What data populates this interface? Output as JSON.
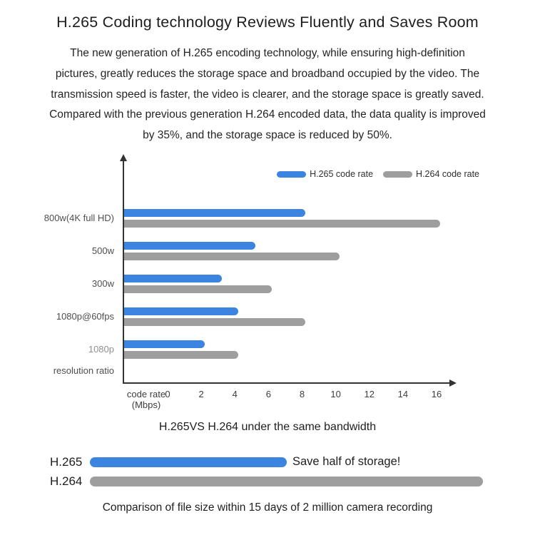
{
  "page": {
    "title": "H.265 Coding technology Reviews Fluently and Saves Room",
    "intro": "The new generation of H.265 encoding technology, while ensuring high-definition\npictures, greatly reduces the storage space and broadband occupied by the video. The\ntransmission speed is faster, the video is clearer, and the storage space is greatly saved.\nCompared with the previous generation H.264 encoded data, the data quality is improved\nby 35%, and the storage space is reduced by 50%."
  },
  "colors": {
    "h265_blue": "#3B84E0",
    "h264_gray": "#9E9E9E",
    "axis": "#333333",
    "muted_category": "#8f8f8f",
    "category": "#4f4f4f"
  },
  "chart_data": [
    {
      "type": "bar",
      "orientation": "horizontal",
      "title": "H.265VS H.264 under the same bandwidth",
      "categories": [
        "800w(4K full HD)",
        "500w",
        "300w",
        "1080p@60fps",
        "1080p"
      ],
      "category_colors": [
        "#4f4f4f",
        "#4f4f4f",
        "#4f4f4f",
        "#4f4f4f",
        "#8f8f8f"
      ],
      "series": [
        {
          "name": "H.265 code rate",
          "color": "#3B84E0",
          "values": [
            8,
            5,
            3,
            4,
            2
          ]
        },
        {
          "name": "H.264 code rate",
          "color": "#9E9E9E",
          "values": [
            16,
            10,
            6,
            8,
            4
          ]
        }
      ],
      "xlabel": "code rate\n(Mbps)",
      "ylabel": "resolution ratio",
      "x_ticks": [
        0,
        2,
        4,
        6,
        8,
        10,
        12,
        14,
        16
      ],
      "xlim": [
        0,
        17
      ],
      "grid": false,
      "legend_position": "top-right"
    },
    {
      "type": "bar",
      "orientation": "horizontal",
      "title": "Comparison of file size within 15 days of 2 million camera recording",
      "categories": [
        "H.265",
        "H.264"
      ],
      "values_percent_of_h264": [
        50,
        100
      ],
      "colors": [
        "#3B84E0",
        "#9E9E9E"
      ],
      "annotation": "Save half of storage!"
    }
  ]
}
